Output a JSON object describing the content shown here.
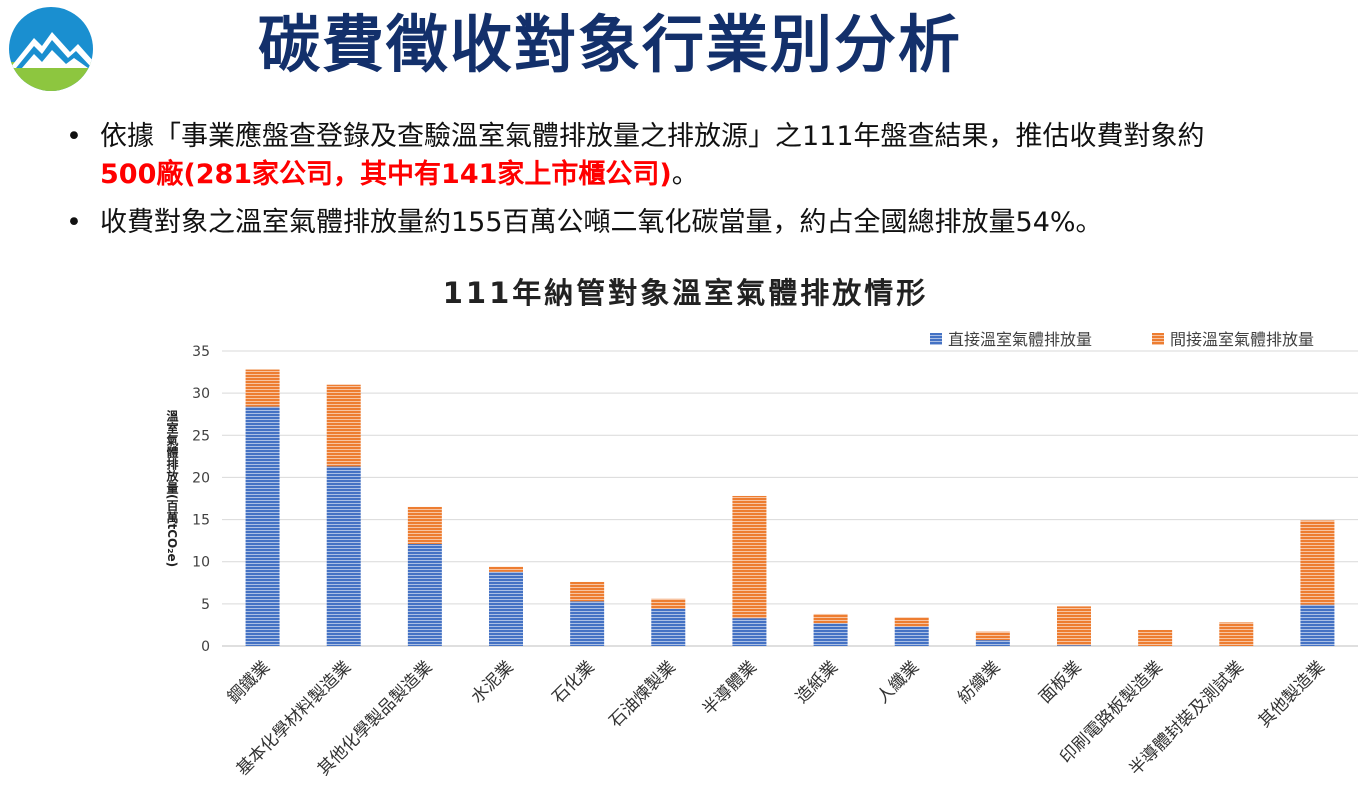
{
  "header": {
    "title": "碳費徵收對象行業別分析"
  },
  "bullets": {
    "b1_line1": "依據「事業應盤查登錄及查驗溫室氣體排放量之排放源」之111年盤查結果，推估收費對象約",
    "b1_red": "500廠(281家公司，其中有141家上市櫃公司)",
    "b1_tail": "。",
    "b2": "收費對象之溫室氣體排放量約155百萬公噸二氧化碳當量，約占全國總排放量54%。"
  },
  "colors": {
    "direct": "#4472c4",
    "indirect": "#ed7d31",
    "title": "#13306b",
    "highlight": "#ff0000"
  },
  "chart_data": {
    "type": "bar",
    "stacked": true,
    "title": "111年納管對象溫室氣體排放情形",
    "ylabel": "溫室氣體排放量(百萬tCO₂e)",
    "ylim": [
      0,
      35
    ],
    "yticks": [
      0,
      5,
      10,
      15,
      20,
      25,
      30,
      35
    ],
    "grid": true,
    "legend_position": "top-right",
    "categories": [
      "鋼鐵業",
      "基本化學材料製造業",
      "其他化學製品製造業",
      "水泥業",
      "石化業",
      "石油煉製業",
      "半導體業",
      "造紙業",
      "人纖業",
      "紡織業",
      "面板業",
      "印刷電路板製造業",
      "半導體封裝及測試業",
      "其他製造業"
    ],
    "series": [
      {
        "name": "直接溫室氣體排放量",
        "color": "#4472c4",
        "values": [
          28.4,
          21.3,
          12.1,
          8.8,
          5.3,
          4.4,
          3.3,
          2.7,
          2.3,
          0.7,
          0.1,
          0.0,
          0.0,
          4.9
        ]
      },
      {
        "name": "間接溫室氣體排放量",
        "color": "#ed7d31",
        "values": [
          4.4,
          9.7,
          4.4,
          0.6,
          2.3,
          1.2,
          14.5,
          1.1,
          1.1,
          1.0,
          4.6,
          1.9,
          2.8,
          10.0
        ]
      }
    ]
  }
}
